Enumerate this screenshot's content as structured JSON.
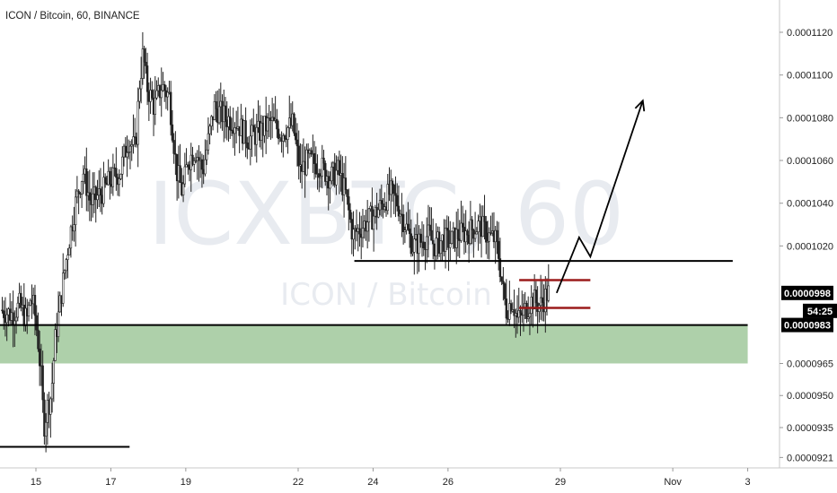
{
  "header": {
    "title": "ICON / Bitcoin, 60, BINANCE"
  },
  "watermark": {
    "symbol": "ICXBTC, 60",
    "name": "ICON / Bitcoin"
  },
  "chart_data": {
    "type": "candlestick",
    "title": "ICON / Bitcoin, 60, BINANCE",
    "xlabel": "",
    "ylabel": "",
    "ylim": [
      9.18e-05,
      0.0001135
    ],
    "x_ticks": [
      "15",
      "17",
      "19",
      "22",
      "24",
      "26",
      "29",
      "Nov",
      "3"
    ],
    "y_ticks": [
      "0.0001120",
      "0.0001100",
      "0.0001080",
      "0.0001060",
      "0.0001040",
      "0.0001020",
      "0.0000965",
      "0.0000950",
      "0.0000935",
      "0.0000921"
    ],
    "price_tags": [
      {
        "label": "0.0000998",
        "bg": "#000000"
      },
      {
        "label": "54:25",
        "bg": "#000000"
      },
      {
        "label": "0.0000983",
        "bg": "#000000"
      }
    ],
    "price_path": [
      [
        14.1,
        9.9e-05
      ],
      [
        14.4,
        9.88e-05
      ],
      [
        14.6,
        9.92e-05
      ],
      [
        14.8,
        9.85e-05
      ],
      [
        14.9,
        9.96e-05
      ],
      [
        15.0,
        9.9e-05
      ],
      [
        15.1,
        9.75e-05
      ],
      [
        15.2,
        9.55e-05
      ],
      [
        15.25,
        9.35e-05
      ],
      [
        15.35,
        9.45e-05
      ],
      [
        15.45,
        9.5e-05
      ],
      [
        15.55,
        9.75e-05
      ],
      [
        15.7,
        9.95e-05
      ],
      [
        15.9,
        0.000102
      ],
      [
        16.1,
        0.000104
      ],
      [
        16.3,
        0.0001055
      ],
      [
        16.5,
        0.000104
      ],
      [
        16.8,
        0.0001045
      ],
      [
        17.0,
        0.000105
      ],
      [
        17.3,
        0.0001055
      ],
      [
        17.5,
        0.000107
      ],
      [
        17.7,
        0.0001065
      ],
      [
        17.8,
        0.0001095
      ],
      [
        17.9,
        0.000111
      ],
      [
        18.0,
        0.0001095
      ],
      [
        18.2,
        0.0001085
      ],
      [
        18.4,
        0.0001095
      ],
      [
        18.6,
        0.000109
      ],
      [
        18.8,
        0.0001055
      ],
      [
        18.95,
        0.0001045
      ],
      [
        19.1,
        0.000106
      ],
      [
        19.3,
        0.0001065
      ],
      [
        19.5,
        0.0001055
      ],
      [
        19.8,
        0.0001085
      ],
      [
        20.1,
        0.000108
      ],
      [
        20.4,
        0.0001078
      ],
      [
        20.7,
        0.000107
      ],
      [
        21.0,
        0.0001073
      ],
      [
        21.3,
        0.0001078
      ],
      [
        21.6,
        0.0001073
      ],
      [
        21.9,
        0.0001077
      ],
      [
        22.0,
        0.0001065
      ],
      [
        22.1,
        0.0001055
      ],
      [
        22.3,
        0.000106
      ],
      [
        22.6,
        0.0001058
      ],
      [
        22.9,
        0.0001052
      ],
      [
        23.1,
        0.0001055
      ],
      [
        23.3,
        0.0001045
      ],
      [
        23.5,
        0.0001025
      ],
      [
        23.8,
        0.000103
      ],
      [
        24.1,
        0.0001035
      ],
      [
        24.3,
        0.000104
      ],
      [
        24.5,
        0.0001045
      ],
      [
        24.7,
        0.000104
      ],
      [
        24.9,
        0.000103
      ],
      [
        25.1,
        0.000102
      ],
      [
        25.3,
        0.0001022
      ],
      [
        25.5,
        0.0001025
      ],
      [
        25.7,
        0.000102
      ],
      [
        25.9,
        0.0001023
      ],
      [
        26.1,
        0.0001022
      ],
      [
        26.3,
        0.0001025
      ],
      [
        26.6,
        0.0001027
      ],
      [
        26.9,
        0.000103
      ],
      [
        27.1,
        0.0001025
      ],
      [
        27.3,
        0.0001023
      ],
      [
        27.4,
        0.0001015
      ],
      [
        27.5,
        0.0001
      ],
      [
        27.6,
        9.9e-05
      ],
      [
        27.75,
        9.95e-05
      ],
      [
        27.9,
        9.85e-05
      ],
      [
        28.1,
        9.9e-05
      ],
      [
        28.3,
        9.95e-05
      ],
      [
        28.5,
        9.92e-05
      ],
      [
        28.7,
        9.98e-05
      ]
    ],
    "levels": [
      {
        "name": "support-zone",
        "from": 9.65e-05,
        "to": 9.83e-05,
        "x_from": 14.0,
        "x_to": 34.0
      },
      {
        "name": "top-resistance-line",
        "value": 0.0001013,
        "x_from": 23.5,
        "x_to": 33.6
      },
      {
        "name": "base-support-line",
        "value": 9.83e-05,
        "x_from": 14.0,
        "x_to": 34.0
      },
      {
        "name": "bottom-low-line",
        "value": 9.26e-05,
        "x_from": 14.0,
        "x_to": 17.5
      },
      {
        "name": "range-top-line",
        "value": 0.0001004,
        "x_from": 27.9,
        "x_to": 29.8
      },
      {
        "name": "range-bottom-line",
        "value": 9.91e-05,
        "x_from": 27.9,
        "x_to": 29.8
      }
    ],
    "projection": [
      [
        28.9,
        9.98e-05
      ],
      [
        29.5,
        0.0001024
      ],
      [
        29.8,
        0.0001015
      ],
      [
        31.2,
        0.0001088
      ]
    ],
    "grid": false,
    "legend": "none"
  },
  "colors": {
    "candle": "#222222",
    "zone_fill": "#93c08e",
    "zone_line": "#5b9a55",
    "range": "#9b1c1c",
    "tag_bg": "#000000",
    "watermark": "#e8ebf0"
  }
}
